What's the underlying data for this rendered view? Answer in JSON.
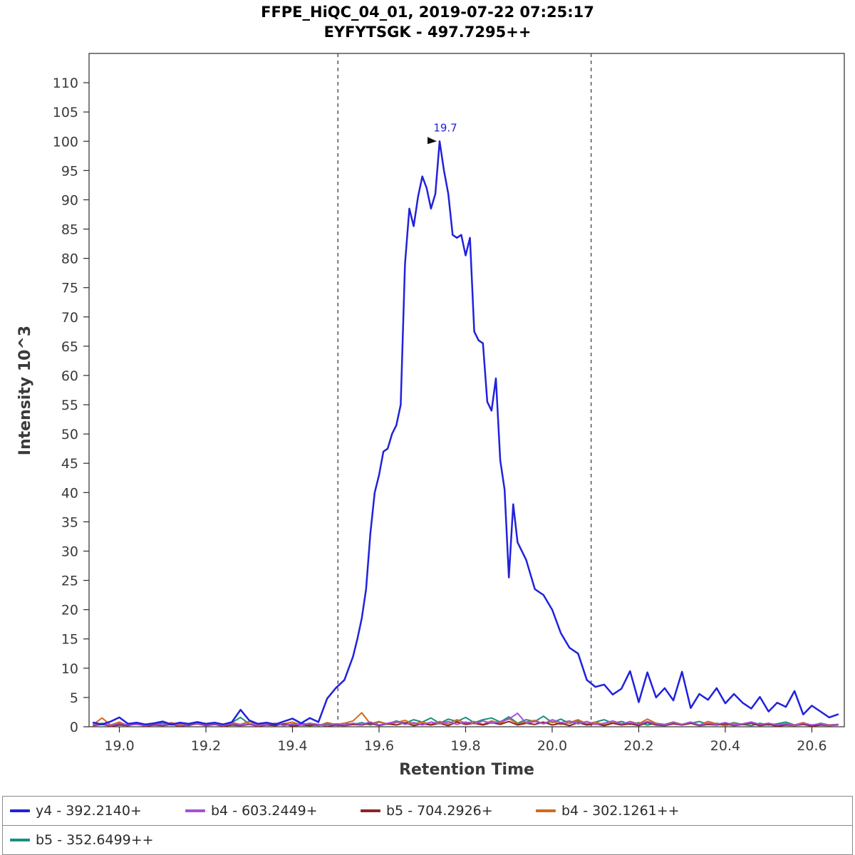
{
  "title": {
    "line1": "FFPE_HiQC_04_01, 2019-07-22 07:25:17",
    "line2": "EYFYTSGK - 497.7295++"
  },
  "axes": {
    "x_label": "Retention Time",
    "y_label": "Intensity 10^3"
  },
  "legend": {
    "items": [
      {
        "label": "y4 - 392.2140+",
        "color": "#2121dd"
      },
      {
        "label": "b4 - 603.2449+",
        "color": "#a550d8"
      },
      {
        "label": "b5 - 704.2926+",
        "color": "#8b2525"
      },
      {
        "label": "b4 - 302.1261++",
        "color": "#d2691e"
      },
      {
        "label": "b5 - 352.6499++",
        "color": "#1a8f7f"
      }
    ]
  },
  "chart_data": {
    "type": "line",
    "title": "FFPE_HiQC_04_01, 2019-07-22 07:25:17",
    "subtitle": "EYFYTSGK - 497.7295++",
    "xlabel": "Retention Time",
    "ylabel": "Intensity 10^3",
    "xlim": [
      18.93,
      20.675
    ],
    "ylim": [
      0,
      115
    ],
    "x_ticks": [
      19.0,
      19.2,
      19.4,
      19.6,
      19.8,
      20.0,
      20.2,
      20.4,
      20.6
    ],
    "y_ticks": [
      0,
      5,
      10,
      15,
      20,
      25,
      30,
      35,
      40,
      45,
      50,
      55,
      60,
      65,
      70,
      75,
      80,
      85,
      90,
      95,
      100,
      105,
      110
    ],
    "grid": false,
    "legend_position": "bottom",
    "boundaries": [
      19.505,
      20.09
    ],
    "peak_annotation": {
      "x": 19.74,
      "y": 100,
      "label": "19.7"
    },
    "series": [
      {
        "name": "y4 - 392.2140+",
        "color": "#2121dd",
        "width": 2.5,
        "x": [
          18.94,
          18.96,
          18.98,
          19.0,
          19.02,
          19.04,
          19.06,
          19.08,
          19.1,
          19.12,
          19.14,
          19.16,
          19.18,
          19.2,
          19.22,
          19.24,
          19.26,
          19.28,
          19.3,
          19.32,
          19.34,
          19.36,
          19.38,
          19.4,
          19.42,
          19.44,
          19.46,
          19.48,
          19.5,
          19.52,
          19.54,
          19.55,
          19.56,
          19.57,
          19.58,
          19.59,
          19.6,
          19.61,
          19.62,
          19.63,
          19.64,
          19.65,
          19.66,
          19.67,
          19.68,
          19.69,
          19.7,
          19.71,
          19.72,
          19.73,
          19.74,
          19.75,
          19.76,
          19.77,
          19.78,
          19.79,
          19.8,
          19.81,
          19.82,
          19.83,
          19.84,
          19.85,
          19.86,
          19.87,
          19.88,
          19.89,
          19.9,
          19.91,
          19.92,
          19.94,
          19.96,
          19.98,
          20.0,
          20.02,
          20.04,
          20.06,
          20.08,
          20.1,
          20.12,
          20.14,
          20.16,
          20.18,
          20.2,
          20.22,
          20.24,
          20.26,
          20.28,
          20.3,
          20.32,
          20.34,
          20.36,
          20.38,
          20.4,
          20.42,
          20.44,
          20.46,
          20.48,
          20.5,
          20.52,
          20.54,
          20.56,
          20.58,
          20.6,
          20.62,
          20.64,
          20.66
        ],
        "y": [
          0.7,
          0.4,
          0.9,
          1.6,
          0.5,
          0.7,
          0.4,
          0.6,
          0.9,
          0.4,
          0.7,
          0.5,
          0.8,
          0.5,
          0.7,
          0.4,
          0.8,
          2.9,
          1.1,
          0.5,
          0.7,
          0.4,
          0.9,
          1.4,
          0.6,
          1.5,
          0.8,
          4.8,
          6.6,
          8.0,
          12.0,
          15.0,
          18.5,
          23.5,
          33.0,
          40.0,
          43.0,
          47.0,
          47.5,
          50.0,
          51.5,
          55.0,
          79.0,
          88.5,
          85.5,
          90.5,
          94.0,
          92.0,
          88.5,
          91.0,
          100.0,
          95.0,
          91.0,
          84.0,
          83.5,
          84.0,
          80.5,
          83.5,
          67.5,
          66.0,
          65.5,
          55.5,
          54.0,
          59.5,
          45.5,
          40.5,
          25.5,
          38.0,
          31.5,
          28.5,
          23.5,
          22.5,
          20.0,
          16.0,
          13.5,
          12.5,
          8.0,
          6.8,
          7.2,
          5.5,
          6.5,
          9.5,
          4.2,
          9.3,
          5.0,
          6.6,
          4.5,
          9.4,
          3.2,
          5.6,
          4.6,
          6.6,
          4.0,
          5.6,
          4.1,
          3.1,
          5.1,
          2.6,
          4.1,
          3.4,
          6.1,
          2.1,
          3.6,
          2.6,
          1.6,
          2.1
        ]
      },
      {
        "name": "b4 - 603.2449+",
        "color": "#a550d8",
        "width": 2,
        "x_start": 18.94,
        "x_step": 0.02,
        "y": [
          0.3,
          0.5,
          0.2,
          0.6,
          0.3,
          0.4,
          0.2,
          0.5,
          0.3,
          0.6,
          0.2,
          0.4,
          0.6,
          0.3,
          0.5,
          0.2,
          0.6,
          0.3,
          0.5,
          0.2,
          0.4,
          0.6,
          0.2,
          0.5,
          0.3,
          0.6,
          0.4,
          0.2,
          0.5,
          0.3,
          0.6,
          0.4,
          0.8,
          0.3,
          0.6,
          0.9,
          0.4,
          0.7,
          0.3,
          0.8,
          0.5,
          0.9,
          0.4,
          0.8,
          0.5,
          1.0,
          0.6,
          0.9,
          1.3,
          2.3,
          0.6,
          0.9,
          0.5,
          1.2,
          0.7,
          1.0,
          0.5,
          0.9,
          0.4,
          0.6,
          1.0,
          0.5,
          0.8,
          0.4,
          0.9,
          0.5,
          0.3,
          0.7,
          0.4,
          0.8,
          0.3,
          0.6,
          0.4,
          0.7,
          0.3,
          0.5,
          0.8,
          0.4,
          0.6,
          0.3,
          0.5,
          0.2,
          0.6,
          0.3,
          0.5,
          0.2,
          0.4
        ]
      },
      {
        "name": "b5 - 704.2926+",
        "color": "#8b2525",
        "width": 2,
        "x_start": 18.94,
        "x_step": 0.02,
        "y": [
          0.2,
          0.4,
          0.1,
          0.3,
          0.2,
          0.5,
          0.1,
          0.3,
          0.2,
          0.4,
          0.1,
          0.3,
          0.5,
          0.2,
          0.4,
          0.1,
          0.3,
          0.2,
          0.4,
          0.1,
          0.3,
          0.2,
          0.5,
          0.1,
          0.3,
          0.2,
          0.4,
          0.1,
          0.3,
          0.2,
          0.4,
          0.3,
          0.6,
          0.2,
          0.5,
          0.3,
          0.7,
          0.2,
          0.5,
          0.3,
          0.6,
          0.2,
          0.8,
          0.4,
          0.6,
          0.3,
          0.7,
          0.4,
          0.9,
          0.3,
          0.6,
          0.4,
          0.8,
          0.3,
          0.6,
          0.2,
          0.7,
          0.3,
          0.5,
          0.2,
          0.6,
          0.3,
          0.5,
          0.2,
          0.7,
          0.3,
          0.2,
          0.5,
          0.3,
          0.6,
          0.2,
          0.4,
          0.3,
          0.5,
          0.2,
          0.4,
          0.6,
          0.2,
          0.4,
          0.1,
          0.3,
          0.2,
          0.4,
          0.1,
          0.3,
          0.2,
          0.3
        ]
      },
      {
        "name": "b4 - 302.1261++",
        "color": "#d2691e",
        "width": 2,
        "x_start": 18.94,
        "x_step": 0.02,
        "y": [
          0.4,
          1.5,
          0.3,
          0.8,
          0.2,
          0.6,
          0.3,
          0.5,
          0.2,
          0.7,
          0.3,
          0.5,
          0.8,
          0.2,
          0.6,
          0.3,
          0.7,
          0.4,
          0.9,
          0.3,
          0.6,
          0.2,
          0.5,
          0.8,
          0.3,
          0.6,
          0.2,
          0.7,
          0.4,
          0.6,
          1.0,
          2.4,
          0.5,
          0.9,
          0.4,
          0.7,
          1.1,
          0.5,
          0.8,
          0.4,
          0.9,
          0.5,
          1.2,
          0.6,
          0.9,
          0.4,
          1.0,
          0.6,
          1.4,
          0.5,
          0.8,
          1.1,
          0.5,
          0.9,
          0.4,
          0.7,
          1.2,
          0.5,
          0.8,
          0.3,
          0.7,
          0.4,
          0.9,
          0.5,
          1.3,
          0.6,
          0.3,
          0.8,
          0.4,
          0.7,
          0.3,
          0.9,
          0.5,
          0.2,
          0.6,
          0.4,
          0.8,
          0.3,
          0.6,
          0.2,
          0.5,
          0.3,
          0.7,
          0.2,
          0.5,
          0.3,
          0.4
        ]
      },
      {
        "name": "b5 - 352.6499++",
        "color": "#1a8f7f",
        "width": 2,
        "x_start": 18.94,
        "x_step": 0.02,
        "y": [
          0.3,
          0.6,
          0.2,
          0.5,
          0.3,
          0.7,
          0.2,
          0.4,
          0.6,
          0.3,
          0.5,
          0.2,
          0.6,
          0.3,
          0.4,
          0.2,
          0.7,
          1.6,
          0.5,
          0.3,
          0.6,
          0.2,
          0.5,
          0.3,
          0.6,
          0.4,
          0.2,
          0.5,
          0.3,
          0.6,
          0.4,
          0.7,
          0.3,
          0.8,
          0.5,
          1.0,
          0.6,
          1.2,
          0.8,
          1.5,
          0.6,
          1.3,
          0.9,
          1.6,
          0.7,
          1.2,
          1.5,
          0.8,
          1.7,
          0.6,
          1.2,
          0.9,
          1.8,
          0.7,
          1.3,
          0.6,
          1.0,
          0.5,
          0.8,
          1.2,
          0.6,
          0.9,
          0.4,
          0.7,
          0.3,
          0.6,
          0.4,
          0.8,
          0.3,
          0.6,
          0.9,
          0.4,
          0.6,
          0.3,
          0.7,
          0.4,
          0.2,
          0.6,
          0.3,
          0.5,
          0.8,
          0.3,
          0.5,
          0.2,
          0.6,
          0.3,
          0.4
        ]
      }
    ]
  }
}
